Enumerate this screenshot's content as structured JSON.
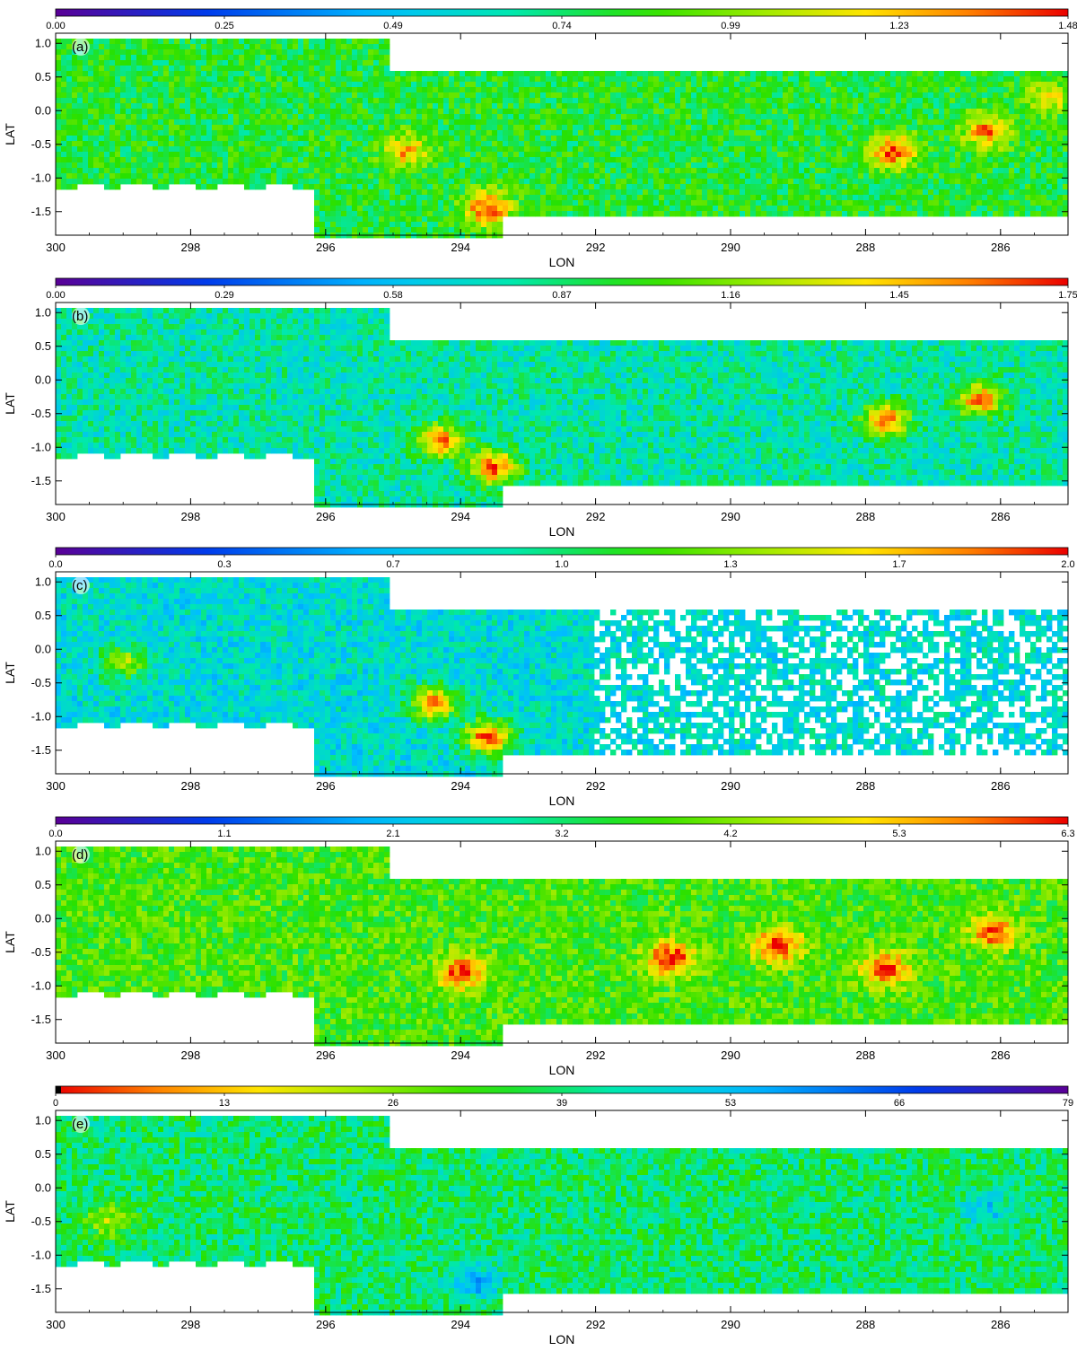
{
  "chart_data": [
    {
      "type": "heatmap",
      "panel_label": "(a)",
      "colormap": "rainbow",
      "colorbar_reversed": false,
      "colorbar_ticks": [
        "0.00",
        "0.25",
        "0.49",
        "0.74",
        "0.99",
        "1.23",
        "1.48"
      ],
      "colorbar_range": [
        0.0,
        1.48
      ],
      "xlabel": "LON",
      "ylabel": "LAT",
      "xticks": [
        "300",
        "298",
        "296",
        "294",
        "292",
        "290",
        "288",
        "286"
      ],
      "yticks": [
        "1.0",
        "0.5",
        "0.0",
        "-0.5",
        "-1.0",
        "-1.5"
      ],
      "xlim": [
        300,
        285
      ],
      "ylim": [
        -1.85,
        1.15
      ],
      "typical_level": 0.55,
      "hotspots": [
        {
          "lon": 293.6,
          "lat": -1.45,
          "level": 0.95
        },
        {
          "lon": 294.8,
          "lat": -0.6,
          "level": 0.85
        },
        {
          "lon": 287.6,
          "lat": -0.6,
          "level": 0.95
        },
        {
          "lon": 286.2,
          "lat": -0.3,
          "level": 0.9
        },
        {
          "lon": 285.3,
          "lat": 0.2,
          "level": 0.8
        }
      ]
    },
    {
      "type": "heatmap",
      "panel_label": "(b)",
      "colormap": "rainbow",
      "colorbar_reversed": false,
      "colorbar_ticks": [
        "0.00",
        "0.29",
        "0.58",
        "0.87",
        "1.16",
        "1.45",
        "1.75"
      ],
      "colorbar_range": [
        0.0,
        1.75
      ],
      "xlabel": "LON",
      "ylabel": "LAT",
      "xticks": [
        "300",
        "298",
        "296",
        "294",
        "292",
        "290",
        "288",
        "286"
      ],
      "yticks": [
        "1.0",
        "0.5",
        "0.0",
        "-0.5",
        "-1.0",
        "-1.5"
      ],
      "xlim": [
        300,
        285
      ],
      "ylim": [
        -1.85,
        1.15
      ],
      "typical_level": 0.45,
      "hotspots": [
        {
          "lon": 293.5,
          "lat": -1.3,
          "level": 0.95
        },
        {
          "lon": 294.3,
          "lat": -0.9,
          "level": 0.9
        },
        {
          "lon": 287.7,
          "lat": -0.6,
          "level": 0.9
        },
        {
          "lon": 286.3,
          "lat": -0.3,
          "level": 0.9
        }
      ]
    },
    {
      "type": "heatmap",
      "panel_label": "(c)",
      "colormap": "rainbow",
      "colorbar_reversed": false,
      "colorbar_ticks": [
        "0.0",
        "0.3",
        "0.7",
        "1.0",
        "1.3",
        "1.7",
        "2.0"
      ],
      "colorbar_range": [
        0.0,
        2.0
      ],
      "xlabel": "LON",
      "ylabel": "LAT",
      "xticks": [
        "300",
        "298",
        "296",
        "294",
        "292",
        "290",
        "288",
        "286"
      ],
      "yticks": [
        "1.0",
        "0.5",
        "0.0",
        "-0.5",
        "-1.0",
        "-1.5"
      ],
      "xlim": [
        300,
        285
      ],
      "ylim": [
        -1.85,
        1.15
      ],
      "typical_level": 0.4,
      "hotspots": [
        {
          "lon": 293.6,
          "lat": -1.3,
          "level": 0.95
        },
        {
          "lon": 294.4,
          "lat": -0.8,
          "level": 0.9
        },
        {
          "lon": 299.0,
          "lat": -0.2,
          "level": 0.7
        }
      ]
    },
    {
      "type": "heatmap",
      "panel_label": "(d)",
      "colormap": "rainbow",
      "colorbar_reversed": false,
      "colorbar_ticks": [
        "0.0",
        "1.1",
        "2.1",
        "3.2",
        "4.2",
        "5.3",
        "6.3"
      ],
      "colorbar_range": [
        0.0,
        6.3
      ],
      "xlabel": "LON",
      "ylabel": "LAT",
      "xticks": [
        "300",
        "298",
        "296",
        "294",
        "292",
        "290",
        "288",
        "286"
      ],
      "yticks": [
        "1.0",
        "0.5",
        "0.0",
        "-0.5",
        "-1.0",
        "-1.5"
      ],
      "xlim": [
        300,
        285
      ],
      "ylim": [
        -1.85,
        1.15
      ],
      "typical_level": 0.6,
      "hotspots": [
        {
          "lon": 287.7,
          "lat": -0.75,
          "level": 1.0
        },
        {
          "lon": 290.9,
          "lat": -0.6,
          "level": 1.0
        },
        {
          "lon": 289.3,
          "lat": -0.4,
          "level": 1.0
        },
        {
          "lon": 294.0,
          "lat": -0.8,
          "level": 0.95
        },
        {
          "lon": 286.1,
          "lat": -0.2,
          "level": 0.95
        }
      ]
    },
    {
      "type": "heatmap",
      "panel_label": "(e)",
      "colormap": "rainbow_reversed",
      "colorbar_reversed": true,
      "colorbar_ticks": [
        "0",
        "13",
        "26",
        "39",
        "53",
        "66",
        "79"
      ],
      "colorbar_range": [
        0,
        79
      ],
      "xlabel": "LON",
      "ylabel": "LAT",
      "xticks": [
        "300",
        "298",
        "296",
        "294",
        "292",
        "290",
        "288",
        "286"
      ],
      "yticks": [
        "1.0",
        "0.5",
        "0.0",
        "-0.5",
        "-1.0",
        "-1.5"
      ],
      "xlim": [
        300,
        285
      ],
      "ylim": [
        -1.85,
        1.15
      ],
      "typical_level": 0.5,
      "hotspots": [
        {
          "lon": 299.2,
          "lat": -0.5,
          "level": 0.3
        },
        {
          "lon": 293.8,
          "lat": -1.4,
          "level": 0.7
        },
        {
          "lon": 286.2,
          "lat": -0.3,
          "level": 0.65
        }
      ]
    }
  ]
}
